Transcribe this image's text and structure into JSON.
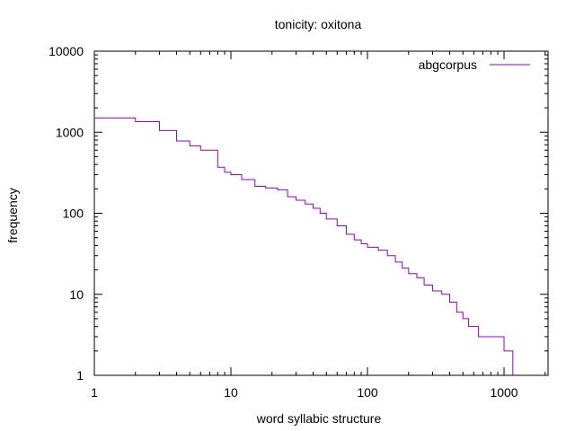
{
  "chart_data": {
    "type": "line",
    "title": "tonicity: oxitona",
    "xlabel": "word syllabic structure",
    "ylabel": "frequency",
    "xscale": "log",
    "yscale": "log",
    "xlim": [
      1,
      2100
    ],
    "ylim": [
      1,
      10000
    ],
    "grid": false,
    "legend_position": "top-right",
    "x_ticks": [
      1,
      10,
      100,
      1000
    ],
    "x_tick_labels": [
      "1",
      "10",
      "100",
      "1000"
    ],
    "y_ticks": [
      1,
      10,
      100,
      1000,
      10000
    ],
    "y_tick_labels": [
      "1",
      "10",
      "100",
      "1000",
      "10000"
    ],
    "series": [
      {
        "name": "abgcorpus",
        "color": "#9400d3",
        "step": true,
        "x": [
          1,
          2,
          3,
          4,
          5,
          6,
          7,
          8,
          9,
          10,
          12,
          15,
          18,
          22,
          26,
          30,
          35,
          40,
          45,
          50,
          60,
          70,
          80,
          90,
          100,
          120,
          140,
          160,
          180,
          200,
          230,
          260,
          300,
          350,
          400,
          450,
          500,
          550,
          650,
          800,
          1000,
          1160
        ],
        "y": [
          1500,
          1350,
          1050,
          780,
          680,
          600,
          600,
          370,
          320,
          300,
          260,
          215,
          205,
          195,
          160,
          145,
          130,
          115,
          100,
          85,
          70,
          55,
          47,
          42,
          38,
          35,
          30,
          25,
          21,
          18,
          16,
          13,
          11,
          10,
          8,
          6,
          5,
          4,
          3,
          3,
          2,
          1
        ]
      }
    ]
  }
}
